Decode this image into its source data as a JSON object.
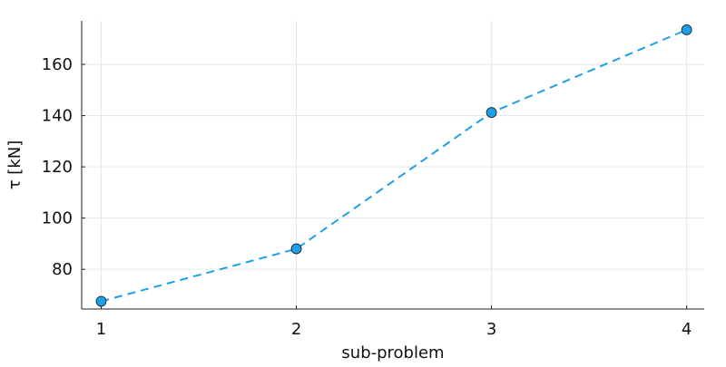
{
  "chart_data": {
    "type": "line",
    "title": "",
    "xlabel": "sub-problem",
    "ylabel": "τ [kN]",
    "x": [
      1,
      2,
      3,
      4
    ],
    "series": [
      {
        "values": [
          67.5,
          88,
          141.2,
          173.5
        ]
      }
    ],
    "xticks": [
      1,
      2,
      3,
      4
    ],
    "xtick_labels": [
      "1",
      "2",
      "3",
      "4"
    ],
    "yticks": [
      80,
      100,
      120,
      140,
      160
    ],
    "ytick_labels": [
      "80",
      "100",
      "120",
      "140",
      "160"
    ],
    "xlim": [
      0.9,
      4.09
    ],
    "ylim": [
      64.5,
      177
    ],
    "grid": true,
    "line_style": "dashed",
    "marker": "circle",
    "colors": {
      "series": "#1f9fe8",
      "marker_edge": "#1a1a1a",
      "grid": "#e6e6e6",
      "axis": "#222222"
    }
  }
}
